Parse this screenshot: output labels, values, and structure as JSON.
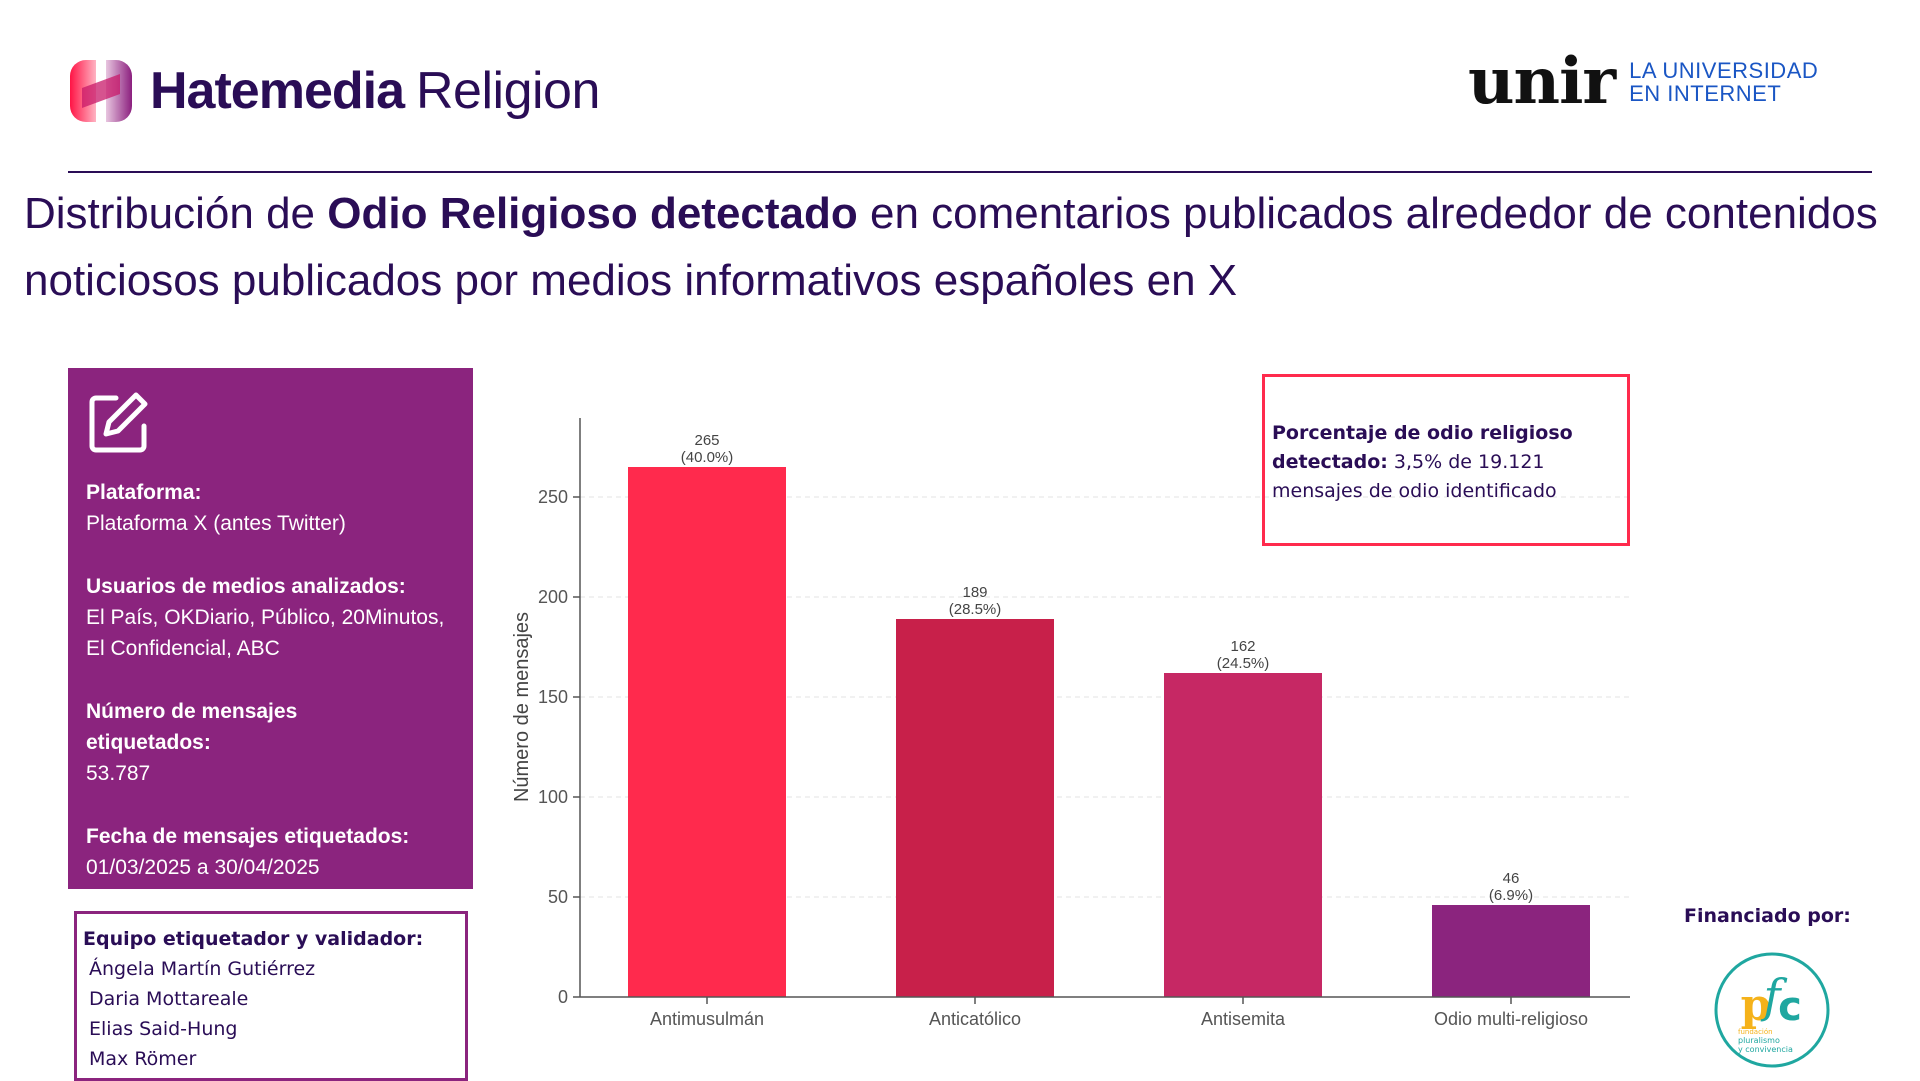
{
  "header": {
    "brand_name": "Hatemedia",
    "brand_sub": "Religion",
    "partner_logo_word": "unir",
    "partner_tagline_1": "LA UNIVERSIDAD",
    "partner_tagline_2": "EN INTERNET"
  },
  "title": {
    "prefix": "Distribución de ",
    "bold": "Odio Religioso detectado",
    "suffix": " en comentarios publicados alrededor de contenidos noticiosos publicados por medios informativos españoles en X"
  },
  "info_panel": {
    "icon": "edit-icon",
    "platform_label": "Plataforma:",
    "platform_value": "Plataforma X  (antes Twitter)",
    "users_label": "Usuarios de medios analizados:",
    "users_value": "El País, OKDiario, Público, 20Minutos, El Confidencial, ABC",
    "count_label": "Número de mensajes etiquetados:",
    "count_value": "53.787",
    "date_label": "Fecha de mensajes etiquetados:",
    "date_value": "01/03/2025 a 30/04/2025"
  },
  "team": {
    "label": "Equipo etiquetador y validador:",
    "members": [
      "Ángela Martín Gutiérrez",
      "Daria Mottareale",
      "Elias Said-Hung",
      "Max Römer"
    ]
  },
  "callout": {
    "bold": "Porcentaje de odio religioso detectado:",
    "text": " 3,5% de 19.121 mensajes de odio identificado"
  },
  "funding": {
    "label": "Financiado por:",
    "logo_line1": "fundación",
    "logo_line2": "pluralismo",
    "logo_line3": "y convivencia"
  },
  "colors": {
    "brand_dark": "#2a0d56",
    "panel_purple": "#8b247e",
    "callout_border": "#ff2a4d",
    "unir_blue": "#1a56c4"
  },
  "chart_data": {
    "type": "bar",
    "title": "",
    "xlabel": "",
    "ylabel": "Número de mensajes",
    "categories": [
      "Antimusulmán",
      "Anticatólico",
      "Antisemita",
      "Odio multi-religioso"
    ],
    "values": [
      265,
      189,
      162,
      46
    ],
    "percentages": [
      "40.0%",
      "28.5%",
      "24.5%",
      "6.9%"
    ],
    "bar_colors": [
      "#ff2a4d",
      "#c8204a",
      "#c62864",
      "#8b247e"
    ],
    "ylim": [
      0,
      290
    ],
    "yticks": [
      0,
      50,
      100,
      150,
      200,
      250
    ],
    "grid": true,
    "legend": "none"
  }
}
